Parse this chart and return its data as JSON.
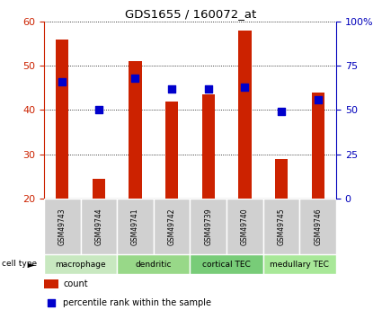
{
  "title": "GDS1655 / 160072_at",
  "samples": [
    "GSM49743",
    "GSM49744",
    "GSM49741",
    "GSM49742",
    "GSM49739",
    "GSM49740",
    "GSM49745",
    "GSM49746"
  ],
  "count_values": [
    56,
    24.5,
    51,
    42,
    43.5,
    58,
    29,
    44
  ],
  "percentile_pct": [
    66,
    50,
    68,
    62,
    62,
    63,
    49,
    56
  ],
  "ylim_left": [
    20,
    60
  ],
  "ylim_right": [
    0,
    100
  ],
  "yticks_left": [
    20,
    30,
    40,
    50,
    60
  ],
  "yticks_right": [
    0,
    25,
    50,
    75,
    100
  ],
  "ytick_labels_right": [
    "0",
    "25",
    "50",
    "75",
    "100%"
  ],
  "cell_types": [
    {
      "label": "macrophage",
      "start": 0,
      "end": 2
    },
    {
      "label": "dendritic",
      "start": 2,
      "end": 4
    },
    {
      "label": "cortical TEC",
      "start": 4,
      "end": 6
    },
    {
      "label": "medullary TEC",
      "start": 6,
      "end": 8
    }
  ],
  "cell_colors": [
    "#c8e8c0",
    "#98d888",
    "#78cc78",
    "#a8e898"
  ],
  "bar_color": "#cc2200",
  "dot_color": "#0000cc",
  "bar_width": 0.35,
  "dot_size": 30,
  "gsm_bg": "#d0d0d0",
  "left_axis_color": "#cc2200",
  "right_axis_color": "#0000bb",
  "title_fontsize": 9.5,
  "tick_fontsize": 8,
  "gsm_fontsize": 5.5,
  "cell_fontsize": 6.5,
  "legend_fontsize": 7
}
